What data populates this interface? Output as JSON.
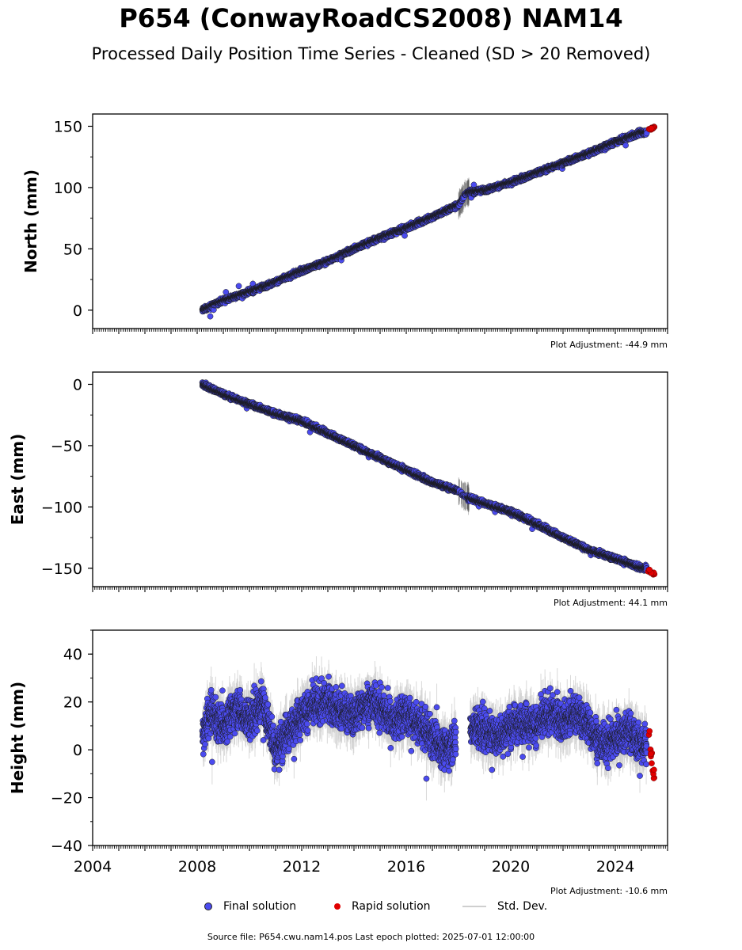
{
  "title": "P654 (ConwayRoadCS2008) NAM14",
  "subtitle": "Processed Daily Position Time Series - Cleaned (SD > 20 Removed)",
  "panels": [
    {
      "ylabel": "North (mm)",
      "adjustment": "Plot Adjustment: -44.9 mm"
    },
    {
      "ylabel": "East (mm)",
      "adjustment": "Plot Adjustment: 44.1 mm"
    },
    {
      "ylabel": "Height (mm)",
      "adjustment": "Plot Adjustment: -10.6 mm"
    }
  ],
  "legend": {
    "final": "Final solution",
    "rapid": "Rapid solution",
    "std": "Std. Dev."
  },
  "source": "Source file: P654.cwu.nam14.pos  Last epoch plotted: 2025-07-01 12:00:00",
  "colors": {
    "final": "#4b4bef",
    "rapid": "#e00000",
    "std": "#cfcfcf"
  },
  "chart_data": [
    {
      "type": "scatter",
      "ylabel": "North (mm)",
      "xlim": [
        2004,
        2026
      ],
      "ylim": [
        -15,
        160
      ],
      "xticks": [
        "2004",
        "2008",
        "2012",
        "2016",
        "2020",
        "2024"
      ],
      "yticks": [
        0,
        50,
        100,
        150
      ],
      "series": [
        {
          "name": "Final solution",
          "x": [
            2008.2,
            2009.0,
            2010.0,
            2011.0,
            2012.0,
            2013.0,
            2014.0,
            2015.0,
            2016.0,
            2017.0,
            2018.0,
            2018.3,
            2019.0,
            2020.0,
            2021.0,
            2022.0,
            2023.0,
            2024.0,
            2025.0
          ],
          "y": [
            0,
            8,
            15,
            23,
            32,
            40,
            50,
            59,
            67,
            76,
            86,
            96,
            98,
            104,
            112,
            120,
            128,
            137,
            145
          ]
        },
        {
          "name": "Rapid solution",
          "x": [
            2025.3,
            2025.45
          ],
          "y": [
            147,
            149
          ]
        }
      ]
    },
    {
      "type": "scatter",
      "ylabel": "East (mm)",
      "xlim": [
        2004,
        2026
      ],
      "ylim": [
        -165,
        10
      ],
      "xticks": [
        "2004",
        "2008",
        "2012",
        "2016",
        "2020",
        "2024"
      ],
      "yticks": [
        0,
        -50,
        -100,
        -150
      ],
      "series": [
        {
          "name": "Final solution",
          "x": [
            2008.2,
            2009.0,
            2010.0,
            2011.0,
            2012.0,
            2013.0,
            2014.0,
            2015.0,
            2016.0,
            2017.0,
            2018.0,
            2018.3,
            2019.0,
            2020.0,
            2021.0,
            2022.0,
            2023.0,
            2024.0,
            2025.0
          ],
          "y": [
            0,
            -8,
            -16,
            -24,
            -30,
            -40,
            -50,
            -60,
            -70,
            -80,
            -87,
            -92,
            -97,
            -104,
            -114,
            -125,
            -135,
            -142,
            -150
          ]
        },
        {
          "name": "Rapid solution",
          "x": [
            2025.3,
            2025.45
          ],
          "y": [
            -152,
            -155
          ]
        }
      ]
    },
    {
      "type": "scatter",
      "ylabel": "Height (mm)",
      "xlim": [
        2004,
        2026
      ],
      "ylim": [
        -40,
        50
      ],
      "xticks": [
        "2004",
        "2008",
        "2012",
        "2016",
        "2020",
        "2024"
      ],
      "yticks": [
        -40,
        -20,
        0,
        20,
        40
      ],
      "series": [
        {
          "name": "Final solution",
          "x": [
            2008.2,
            2008.5,
            2009.0,
            2009.5,
            2010.0,
            2010.5,
            2011.0,
            2011.5,
            2012.0,
            2012.5,
            2013.0,
            2013.5,
            2014.0,
            2014.5,
            2015.0,
            2015.5,
            2016.0,
            2016.5,
            2017.0,
            2017.5,
            2018.0,
            2018.5,
            2019.0,
            2019.5,
            2020.0,
            2020.5,
            2021.0,
            2021.5,
            2022.0,
            2022.5,
            2023.0,
            2023.5,
            2024.0,
            2024.5,
            2025.0
          ],
          "y": [
            5,
            15,
            10,
            18,
            12,
            20,
            0,
            8,
            15,
            18,
            20,
            16,
            14,
            20,
            18,
            12,
            15,
            10,
            5,
            0,
            5,
            10,
            8,
            5,
            10,
            12,
            10,
            15,
            12,
            15,
            10,
            2,
            5,
            8,
            2
          ]
        },
        {
          "name": "Rapid solution",
          "x": [
            2025.3,
            2025.35,
            2025.4,
            2025.45
          ],
          "y": [
            10,
            0,
            -5,
            -8
          ]
        }
      ]
    }
  ]
}
